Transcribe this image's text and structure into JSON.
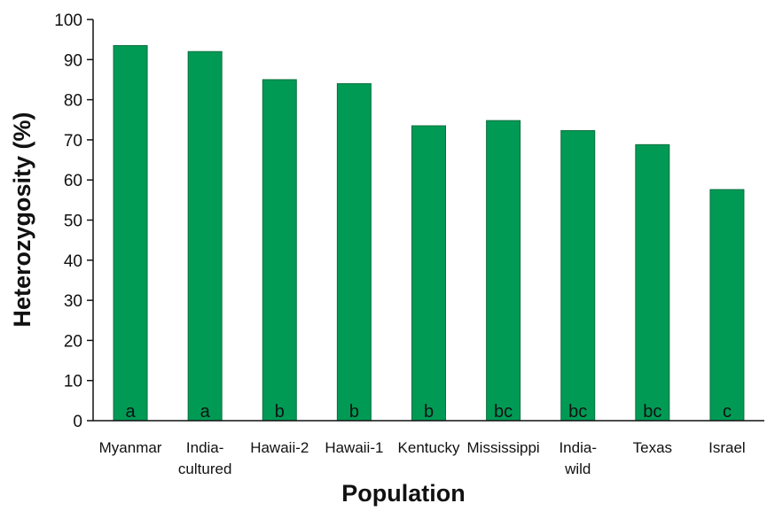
{
  "chart_data": {
    "type": "bar",
    "categories": [
      "Myanmar",
      "India-cultured",
      "Hawaii-2",
      "Hawaii-1",
      "Kentucky",
      "Mississippi",
      "India-wild",
      "Texas",
      "Israel"
    ],
    "category_lines": [
      [
        "Myanmar"
      ],
      [
        "India-",
        "cultured"
      ],
      [
        "Hawaii-2"
      ],
      [
        "Hawaii-1"
      ],
      [
        "Kentucky"
      ],
      [
        "Mississippi"
      ],
      [
        "India-",
        "wild"
      ],
      [
        "Texas"
      ],
      [
        "Israel"
      ]
    ],
    "values": [
      93.5,
      92,
      85,
      84,
      73.5,
      74.8,
      72.3,
      68.8,
      57.6
    ],
    "group_letters": [
      "a",
      "a",
      "b",
      "b",
      "b",
      "bc",
      "bc",
      "bc",
      "c"
    ],
    "xlabel": "Population",
    "ylabel": "Heterozygosity (%)",
    "ylim": [
      0,
      100
    ],
    "yticks": [
      0,
      10,
      20,
      30,
      40,
      50,
      60,
      70,
      80,
      90,
      100
    ],
    "grid": false,
    "bar_color": "#009a55"
  }
}
